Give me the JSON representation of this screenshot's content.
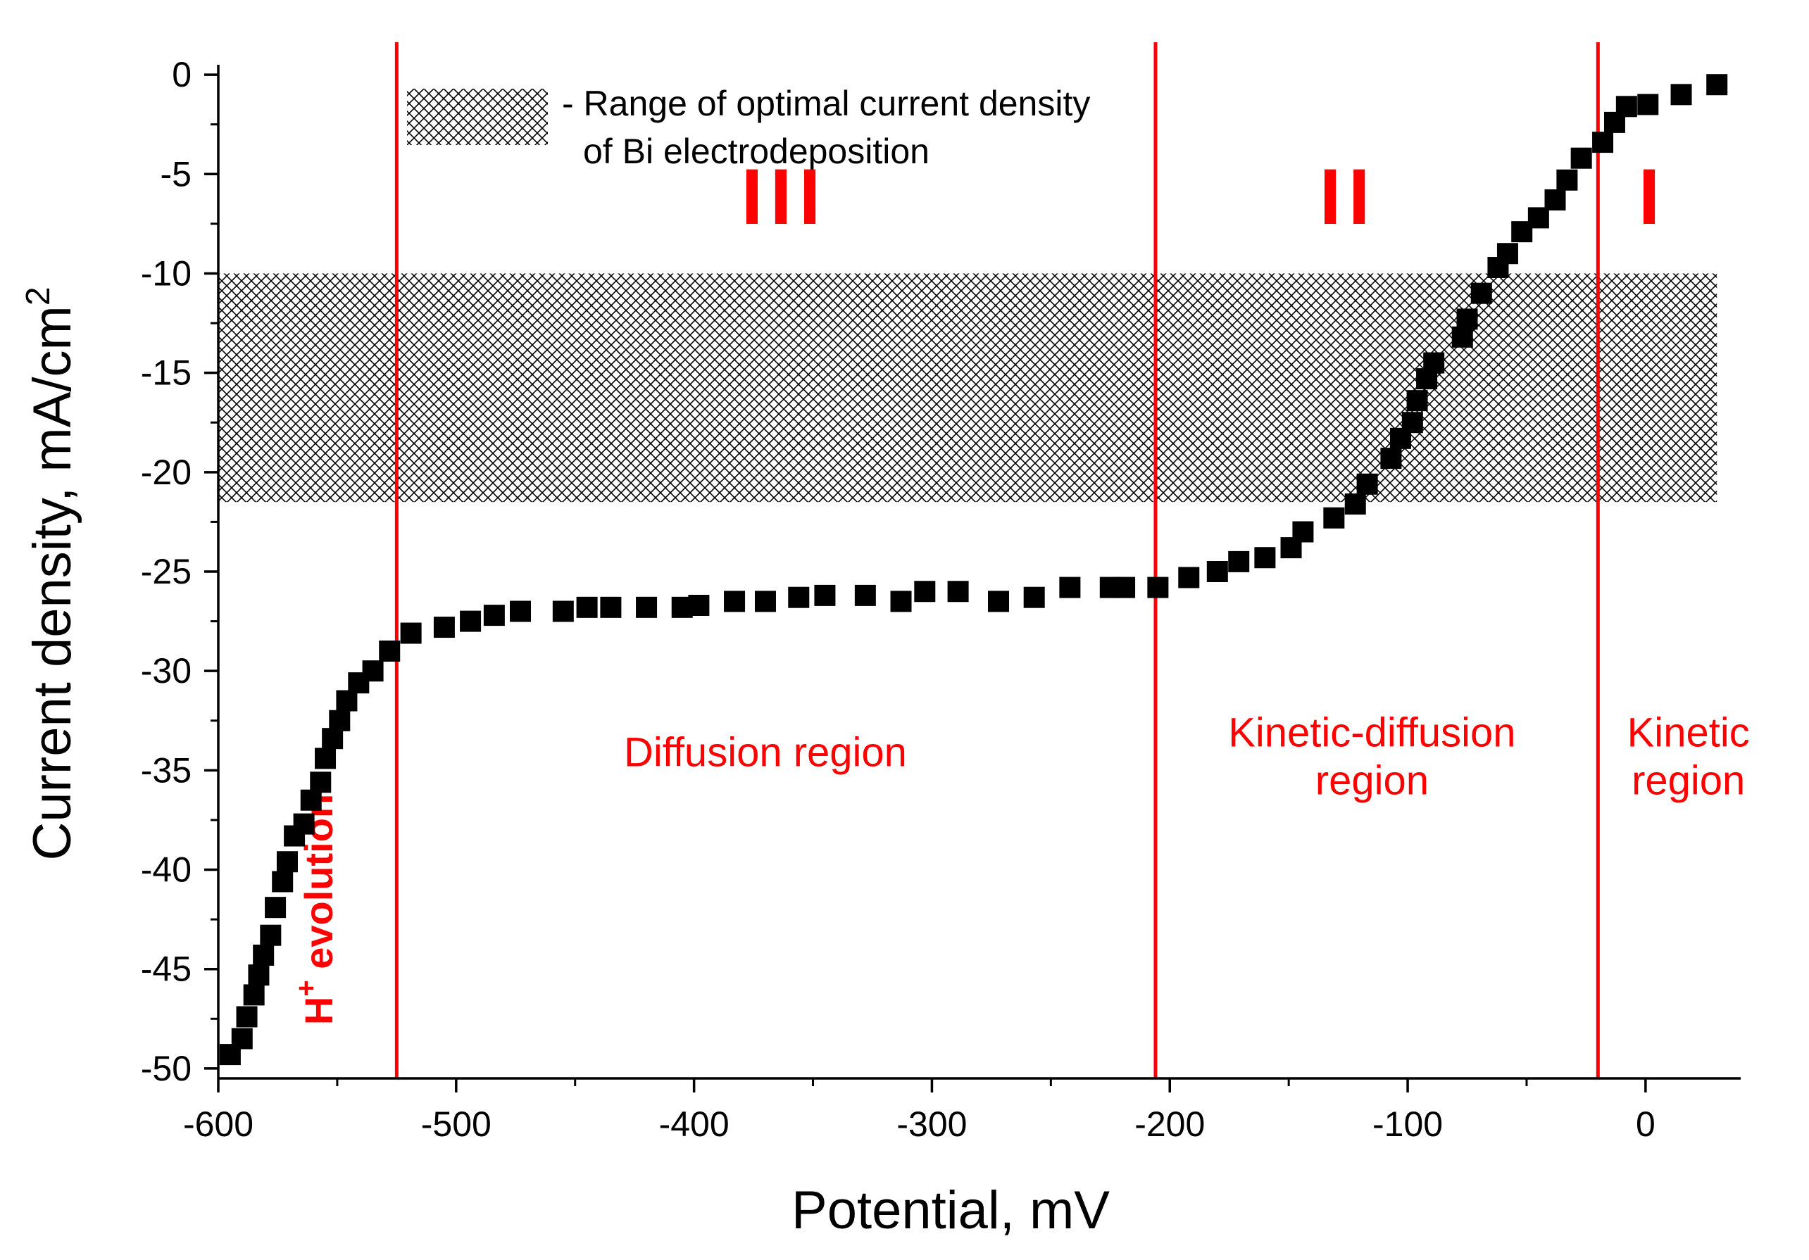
{
  "chart_data": {
    "type": "scatter",
    "xlabel": "Potential, mV",
    "ylabel_main": "Current density, mA/cm",
    "ylabel_sup": "2",
    "xlim": [
      -600,
      40
    ],
    "ylim": [
      -50.5,
      0.5
    ],
    "xticks": [
      -600,
      -500,
      -400,
      -300,
      -200,
      -100,
      0
    ],
    "xtick_labels": [
      "-600",
      "-500",
      "-400",
      "-300",
      "-200",
      "-100",
      "0"
    ],
    "yticks": [
      0,
      -5,
      -10,
      -15,
      -20,
      -25,
      -30,
      -35,
      -40,
      -45,
      -50
    ],
    "ytick_labels": [
      "0",
      "-5",
      "-10",
      "-15",
      "-20",
      "-25",
      "-30",
      "-35",
      "-40",
      "-45",
      "-50"
    ],
    "optimal_band": {
      "y_top": -10,
      "y_bottom": -21.5,
      "x_start": -600,
      "x_end": 30
    },
    "region_boundaries": [
      -525,
      -206,
      -20
    ],
    "legend": {
      "line1": "- Range of optimal current density",
      "line2": "of Bi electrodeposition"
    },
    "roman_labels": [
      {
        "text": "III",
        "x": -362,
        "y": -7.5
      },
      {
        "text": "II",
        "x": -125,
        "y": -7.5
      },
      {
        "text": "I",
        "x": 3,
        "y": -7.5
      }
    ],
    "region_labels": [
      {
        "lines": [
          "Diffusion region"
        ],
        "x": -370,
        "y": -34.8
      },
      {
        "lines": [
          "Kinetic-diffusion",
          "region"
        ],
        "x": -115,
        "y": -33.8
      },
      {
        "lines": [
          "Kinetic",
          "region"
        ],
        "x": 18,
        "y": -33.8
      }
    ],
    "hplus_label": {
      "base": "H",
      "sup": "+",
      "rest": " evolution",
      "x": -552,
      "y": -42
    },
    "series": [
      {
        "name": "Current density",
        "color": "#000000",
        "x": [
          -595,
          -590,
          -588,
          -585,
          -583,
          -581,
          -578,
          -576,
          -573,
          -571,
          -568,
          -564,
          -561,
          -557,
          -555,
          -552,
          -549,
          -546,
          -541,
          -535,
          -528,
          -519,
          -505,
          -494,
          -484,
          -473,
          -455,
          -445,
          -435,
          -420,
          -405,
          -398,
          -383,
          -370,
          -356,
          -345,
          -328,
          -313,
          -303,
          -289,
          -272,
          -257,
          -242,
          -225,
          -219,
          -205,
          -192,
          -180,
          -171,
          -160,
          -149,
          -144,
          -131,
          -122,
          -117,
          -107,
          -103,
          -98,
          -96,
          -92,
          -89,
          -77,
          -75,
          -69,
          -62,
          -58,
          -52,
          -45,
          -38,
          -33,
          -27,
          -18,
          -13,
          -8,
          1,
          15,
          30
        ],
        "y": [
          -49.3,
          -48.5,
          -47.4,
          -46.3,
          -45.3,
          -44.3,
          -43.3,
          -41.9,
          -40.6,
          -39.6,
          -38.3,
          -37.7,
          -36.5,
          -35.6,
          -34.4,
          -33.4,
          -32.5,
          -31.5,
          -30.6,
          -30.0,
          -29.0,
          -28.1,
          -27.8,
          -27.5,
          -27.2,
          -27.0,
          -27.0,
          -26.8,
          -26.8,
          -26.8,
          -26.8,
          -26.7,
          -26.5,
          -26.5,
          -26.3,
          -26.2,
          -26.2,
          -26.5,
          -26.0,
          -26.0,
          -26.5,
          -26.3,
          -25.8,
          -25.8,
          -25.8,
          -25.8,
          -25.3,
          -25.0,
          -24.5,
          -24.3,
          -23.8,
          -23.0,
          -22.3,
          -21.6,
          -20.6,
          -19.3,
          -18.3,
          -17.5,
          -16.4,
          -15.3,
          -14.5,
          -13.2,
          -12.3,
          -11.0,
          -9.7,
          -9.0,
          -7.9,
          -7.2,
          -6.3,
          -5.3,
          -4.2,
          -3.4,
          -2.4,
          -1.6,
          -1.5,
          -1.0,
          -0.5
        ]
      }
    ]
  }
}
